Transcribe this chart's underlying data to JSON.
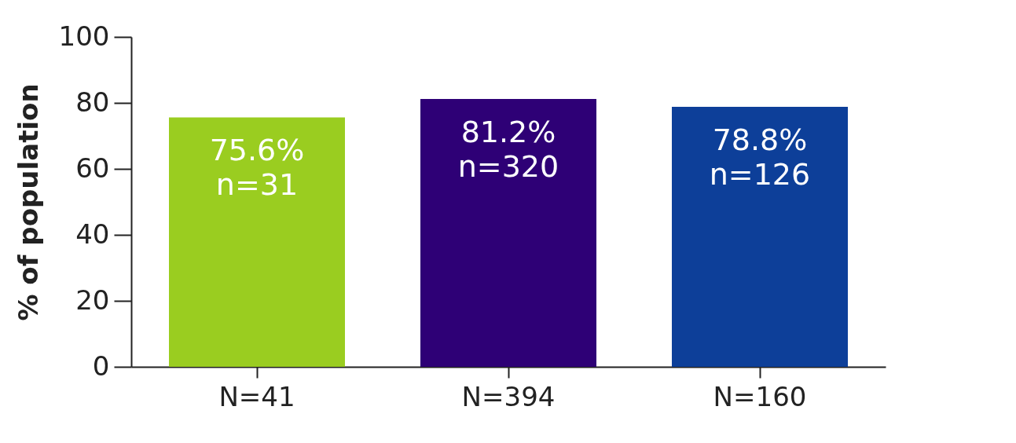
{
  "chart_data": {
    "type": "bar",
    "ylabel": "% of population",
    "categories": [
      "N=41",
      "N=394",
      "N=160"
    ],
    "values": [
      75.6,
      81.2,
      78.8
    ],
    "colors": [
      "#9acd20",
      "#2e0076",
      "#0d3f99"
    ],
    "value_labels": [
      "75.6%\nn=31",
      "81.2%\nn=320",
      "78.8%\nn=126"
    ],
    "ylim": [
      0,
      100
    ],
    "yticks": [
      0,
      20,
      40,
      60,
      80,
      100
    ],
    "grid": false
  }
}
